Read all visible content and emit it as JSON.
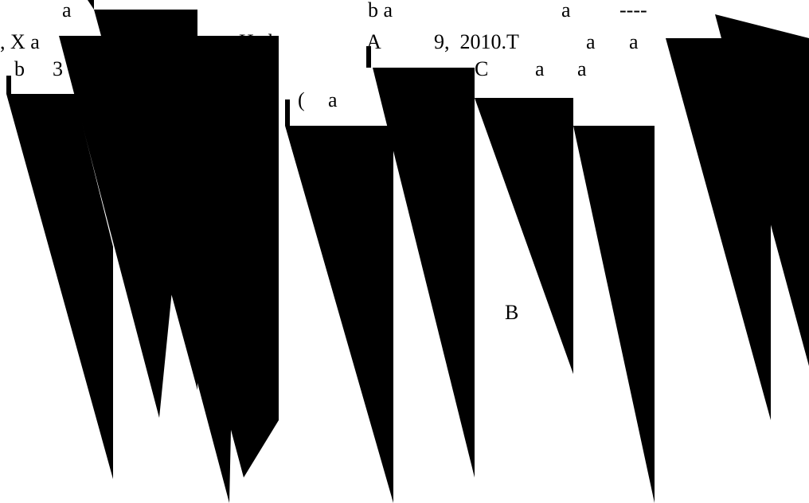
{
  "colors": {
    "background": "#ffffff",
    "foreground": "#000000"
  },
  "fragments": {
    "r1a": "a",
    "r1b": "b a",
    "r1c": "a",
    "r1d": "----",
    "r2a": ", X a",
    "r2b": "a",
    "r2c": "Ha b",
    "r2d": "A",
    "r2e": "9,  2010.T",
    "r2f": "a",
    "r2g": "a",
    "r3a": "b",
    "r3b": "3",
    "r3c": "C",
    "r3d": "a",
    "r3e": "a",
    "r4a": "(",
    "r4b": "a",
    "mid": "B"
  }
}
